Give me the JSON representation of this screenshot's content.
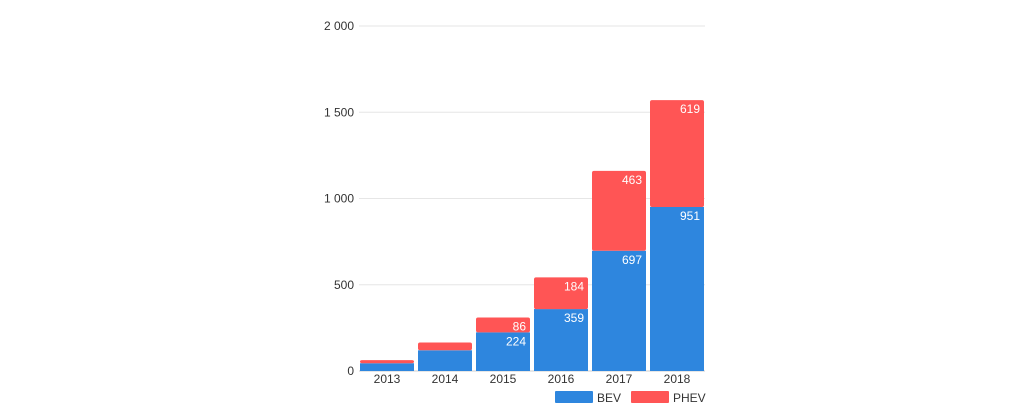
{
  "chart_data": {
    "type": "bar",
    "stacked": true,
    "categories": [
      "2013",
      "2014",
      "2015",
      "2016",
      "2017",
      "2018"
    ],
    "series": [
      {
        "name": "BEV",
        "color": "#2e86de",
        "values": [
          45,
          120,
          224,
          359,
          697,
          951
        ],
        "labels": [
          "",
          "",
          "224",
          "359",
          "697",
          "951"
        ]
      },
      {
        "name": "PHEV",
        "color": "#ff5555",
        "values": [
          18,
          45,
          86,
          184,
          463,
          619
        ],
        "labels": [
          "",
          "",
          "86",
          "184",
          "463",
          "619"
        ]
      }
    ],
    "ylim": [
      0,
      2000
    ],
    "yticks": [
      0,
      500,
      1000,
      1500,
      2000
    ],
    "ytick_labels": [
      "0",
      "500",
      "1 000",
      "1 500",
      "2 000"
    ],
    "grid": true,
    "legend_position": "bottom-right"
  }
}
